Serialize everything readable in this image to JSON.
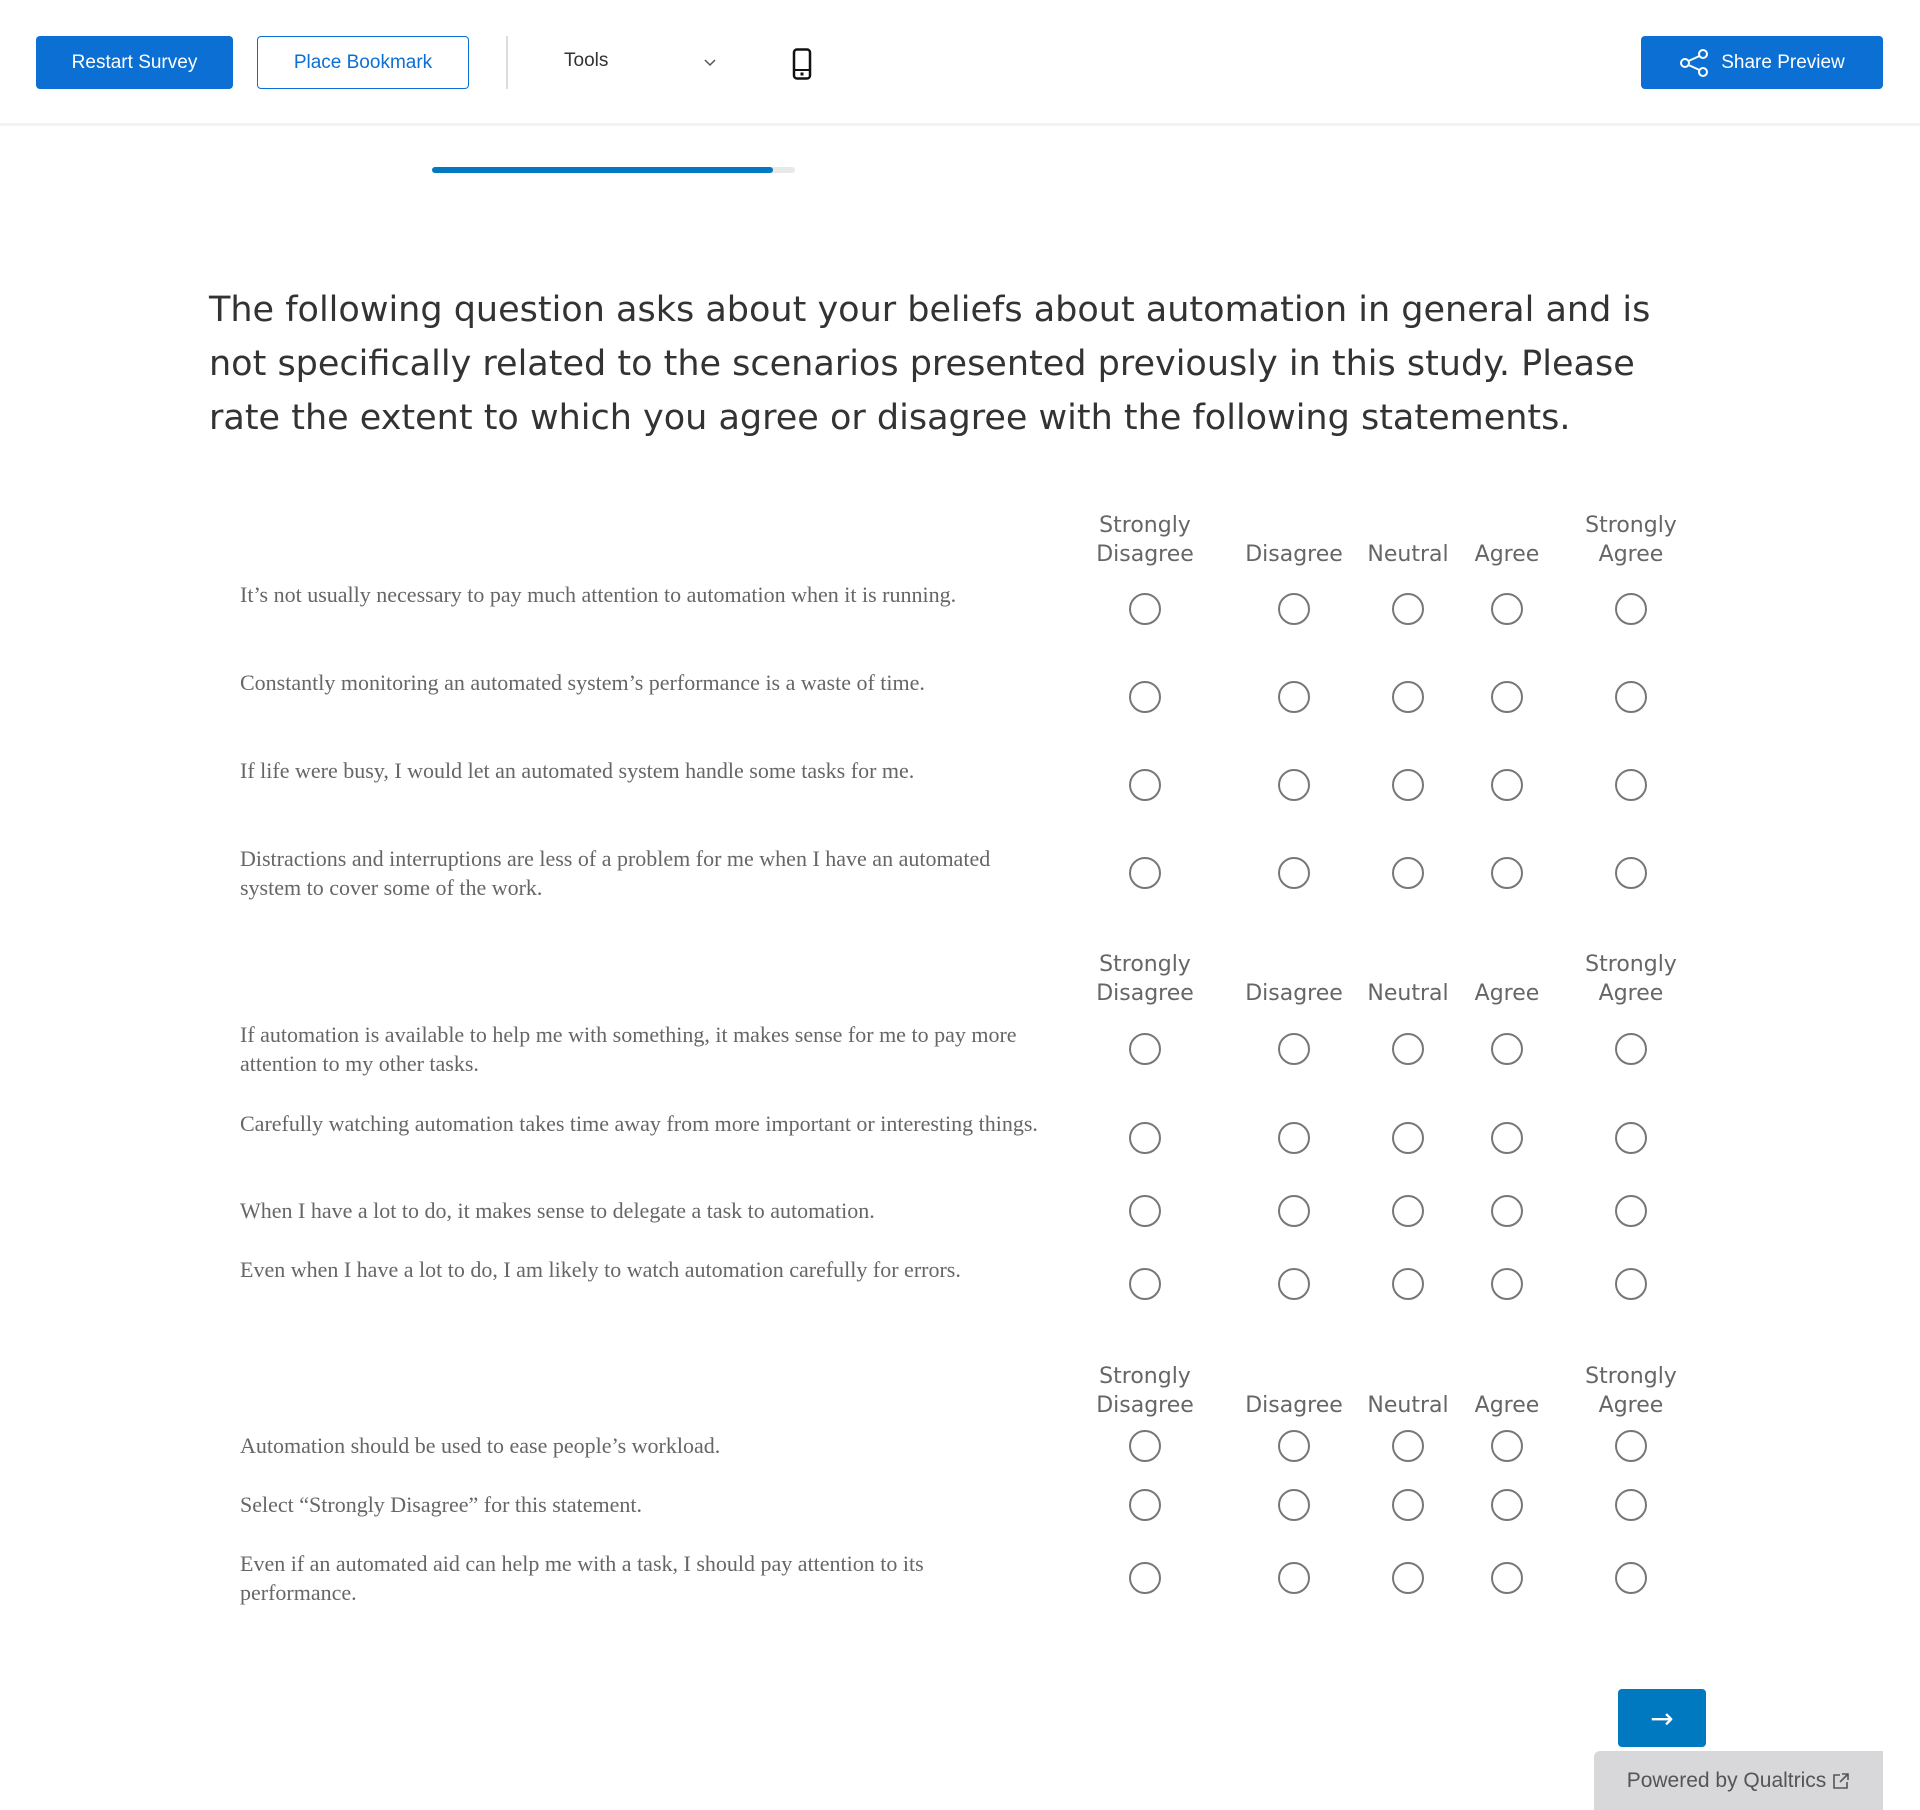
{
  "header": {
    "restart_label": "Restart Survey",
    "bookmark_label": "Place Bookmark",
    "tools_label": "Tools",
    "share_label": "Share Preview",
    "icons": [
      "chevron-down-icon",
      "mobile-phone-icon",
      "share-icon"
    ],
    "accent": "#0b6fd3"
  },
  "progress": {
    "percent": 94
  },
  "question": "The following question asks about your beliefs about automation in general and is not specifically related to the scenarios presented previously in this study. Please rate the extent to which you agree or disagree with the following statements.",
  "scale": [
    "Strongly Disagree",
    "Disagree",
    "Neutral",
    "Agree",
    "Strongly Agree"
  ],
  "groups": [
    {
      "statements": [
        "It’s not usually necessary to pay much attention to automation when it is running.",
        "Constantly monitoring an automated system’s performance is a waste of time.",
        "If life were busy, I would let an automated system handle some tasks for me.",
        "Distractions and interruptions are less of a problem for me when I have an automated system to cover some of the work."
      ]
    },
    {
      "statements": [
        "If automation is available to help me with something, it makes sense for me to pay more attention to my other tasks.",
        "Carefully watching automation takes time away from more important or interesting things.",
        "When I have a lot to do, it makes sense to delegate a task to automation.",
        "Even when I have a lot to do, I am likely to watch automation carefully for errors."
      ]
    },
    {
      "statements": [
        "Automation should be used to ease people’s workload.",
        "Select “Strongly Disagree” for this statement.",
        "Even if an automated aid can help me with a task, I should pay attention to its performance."
      ]
    }
  ],
  "next_label": "→",
  "footer": {
    "label": "Powered by Qualtrics",
    "icon": "external-link-icon"
  }
}
